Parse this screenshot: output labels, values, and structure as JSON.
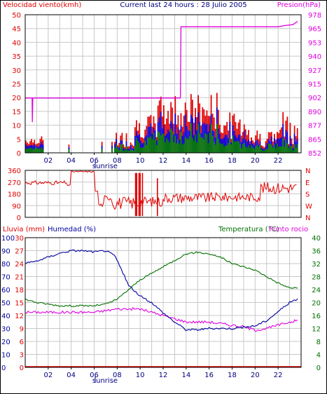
{
  "chart_data": [
    {
      "type": "bar",
      "panel": "wind-speed-and-pressure",
      "title": "Current last 24 hours : 28 Julio 2005",
      "left_label": "Velocidad viento(kmh)",
      "right_label": "Presion(hPa)",
      "left_ticks": [
        "0",
        "5",
        "10",
        "15",
        "20",
        "25",
        "30",
        "35",
        "40",
        "45",
        "50"
      ],
      "right_ticks": [
        "852",
        "865",
        "877",
        "890",
        "902",
        "915",
        "927",
        "940",
        "953",
        "965",
        "978"
      ],
      "ylim_left": [
        0,
        50
      ],
      "ylim_right": [
        852,
        978
      ],
      "x_ticks": [
        "02",
        "04",
        "06",
        "08",
        "10",
        "12",
        "14",
        "16",
        "18",
        "20",
        "22"
      ],
      "xlim": [
        0,
        24
      ],
      "sunrise_label": "sunrise",
      "series_colors": {
        "gust": "#e00000",
        "average": "#0000e0",
        "min": "#008000",
        "pressure": "#e000e0"
      },
      "pressure": [
        {
          "x": 0,
          "y": 902
        },
        {
          "x": 0.6,
          "y": 902
        },
        {
          "x": 0.62,
          "y": 880
        },
        {
          "x": 0.66,
          "y": 902
        },
        {
          "x": 13.5,
          "y": 902
        },
        {
          "x": 13.55,
          "y": 967
        },
        {
          "x": 22.0,
          "y": 967
        },
        {
          "x": 22.5,
          "y": 968
        },
        {
          "x": 23.3,
          "y": 969
        },
        {
          "x": 23.7,
          "y": 972
        }
      ]
    },
    {
      "type": "line",
      "panel": "wind-direction",
      "left_ticks": [
        "0",
        "90",
        "180",
        "270",
        "360"
      ],
      "right_ticks": [
        "N",
        "W",
        "S",
        "E",
        "N"
      ],
      "ylim": [
        0,
        360
      ],
      "x_ticks": [
        "02",
        "04",
        "06",
        "08",
        "10",
        "12",
        "14",
        "16",
        "18",
        "20",
        "22"
      ],
      "xlim": [
        0,
        24
      ],
      "sunrise_label": "sunrise",
      "color": "#e00000"
    },
    {
      "type": "line",
      "panel": "rain-humidity-temperature",
      "rain_label": "Lluvia (mm)",
      "humidity_label": "Humedad (%)",
      "temp_label": "Temperatura (°C)",
      "dew_label": "Punto rocio",
      "rain_ticks": [
        "0",
        "3",
        "6",
        "9",
        "12",
        "15",
        "18",
        "21",
        "24",
        "27",
        "30"
      ],
      "humidity_ticks": [
        "0",
        "10",
        "20",
        "30",
        "40",
        "50",
        "60",
        "70",
        "80",
        "90",
        "100"
      ],
      "temp_ticks_left": [
        "0",
        "4",
        "8",
        "12",
        "16",
        "20",
        "24",
        "28",
        "32",
        "36",
        "40"
      ],
      "temp_ticks_right": [
        "0",
        "4",
        "8",
        "12",
        "16",
        "20",
        "24",
        "28",
        "32",
        "36",
        "40"
      ],
      "x_ticks": [
        "02",
        "04",
        "06",
        "08",
        "10",
        "12",
        "14",
        "16",
        "18",
        "20",
        "22"
      ],
      "xlim": [
        0,
        24
      ],
      "sunrise_label": "sunrise",
      "humidity": [
        {
          "x": 0,
          "y": 80
        },
        {
          "x": 1,
          "y": 82
        },
        {
          "x": 2,
          "y": 85
        },
        {
          "x": 3,
          "y": 88
        },
        {
          "x": 4,
          "y": 90
        },
        {
          "x": 5,
          "y": 90
        },
        {
          "x": 6,
          "y": 89
        },
        {
          "x": 7,
          "y": 90
        },
        {
          "x": 7.8,
          "y": 86
        },
        {
          "x": 8.5,
          "y": 73
        },
        {
          "x": 9,
          "y": 63
        },
        {
          "x": 10,
          "y": 55
        },
        {
          "x": 11,
          "y": 50
        },
        {
          "x": 12,
          "y": 42
        },
        {
          "x": 13,
          "y": 35
        },
        {
          "x": 14,
          "y": 29
        },
        {
          "x": 15,
          "y": 29
        },
        {
          "x": 16,
          "y": 30
        },
        {
          "x": 17,
          "y": 30
        },
        {
          "x": 18,
          "y": 30
        },
        {
          "x": 19,
          "y": 31
        },
        {
          "x": 20,
          "y": 32
        },
        {
          "x": 21,
          "y": 36
        },
        {
          "x": 22,
          "y": 43
        },
        {
          "x": 23,
          "y": 50
        },
        {
          "x": 23.7,
          "y": 53
        }
      ],
      "temperature": [
        {
          "x": 0,
          "y": 21
        },
        {
          "x": 1,
          "y": 20
        },
        {
          "x": 2,
          "y": 19.5
        },
        {
          "x": 3,
          "y": 19
        },
        {
          "x": 4,
          "y": 19
        },
        {
          "x": 5,
          "y": 19
        },
        {
          "x": 6,
          "y": 19
        },
        {
          "x": 7,
          "y": 19.5
        },
        {
          "x": 8,
          "y": 21
        },
        {
          "x": 9,
          "y": 24
        },
        {
          "x": 10,
          "y": 27
        },
        {
          "x": 11,
          "y": 29
        },
        {
          "x": 12,
          "y": 31
        },
        {
          "x": 13,
          "y": 33
        },
        {
          "x": 14,
          "y": 35
        },
        {
          "x": 15,
          "y": 35.5
        },
        {
          "x": 16,
          "y": 35
        },
        {
          "x": 17,
          "y": 34
        },
        {
          "x": 18,
          "y": 32
        },
        {
          "x": 19,
          "y": 31
        },
        {
          "x": 20,
          "y": 30
        },
        {
          "x": 21,
          "y": 28
        },
        {
          "x": 22,
          "y": 26
        },
        {
          "x": 23,
          "y": 24.5
        },
        {
          "x": 23.7,
          "y": 24.5
        }
      ],
      "dew_point": [
        {
          "x": 0,
          "y": 17
        },
        {
          "x": 1,
          "y": 17
        },
        {
          "x": 2,
          "y": 17
        },
        {
          "x": 3,
          "y": 17
        },
        {
          "x": 4,
          "y": 17
        },
        {
          "x": 5,
          "y": 17
        },
        {
          "x": 6,
          "y": 17
        },
        {
          "x": 7,
          "y": 17.5
        },
        {
          "x": 8,
          "y": 18
        },
        {
          "x": 9,
          "y": 18
        },
        {
          "x": 10,
          "y": 18
        },
        {
          "x": 11,
          "y": 17
        },
        {
          "x": 12,
          "y": 16
        },
        {
          "x": 13,
          "y": 15
        },
        {
          "x": 14,
          "y": 14
        },
        {
          "x": 15,
          "y": 14
        },
        {
          "x": 16,
          "y": 14
        },
        {
          "x": 17,
          "y": 13.5
        },
        {
          "x": 18,
          "y": 13
        },
        {
          "x": 19,
          "y": 12.5
        },
        {
          "x": 20,
          "y": 11.5
        },
        {
          "x": 21,
          "y": 12
        },
        {
          "x": 22,
          "y": 13
        },
        {
          "x": 23,
          "y": 14
        },
        {
          "x": 23.7,
          "y": 14.5
        }
      ],
      "rain": [
        {
          "x": 0,
          "y": 0
        },
        {
          "x": 23.7,
          "y": 0
        }
      ],
      "colors": {
        "rain": "#e00000",
        "humidity": "#0000a0",
        "temperature": "#007000",
        "dew_point": "#e000e0"
      }
    }
  ]
}
